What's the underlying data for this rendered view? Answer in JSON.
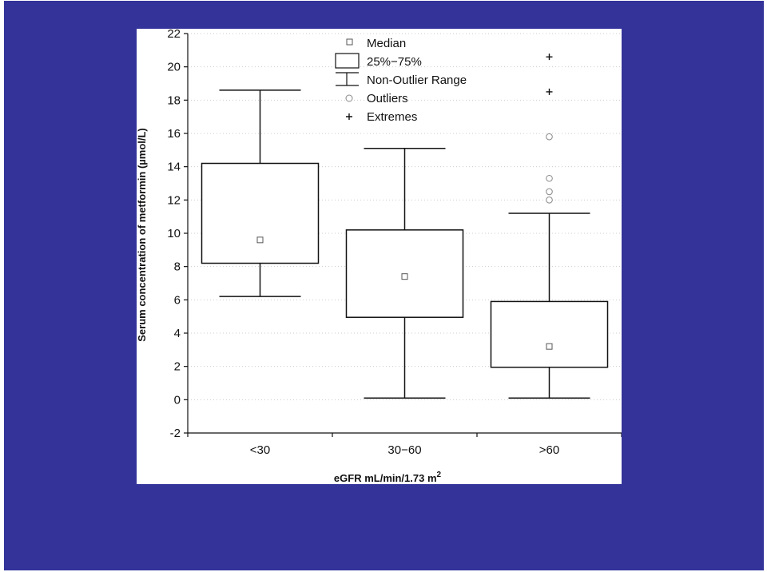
{
  "chart_data": {
    "type": "box",
    "categories": [
      "<30",
      "30−60",
      ">60"
    ],
    "boxes": [
      {
        "category": "<30",
        "whisker_low": 6.2,
        "q1": 8.2,
        "median": 9.6,
        "q3": 14.2,
        "whisker_high": 18.6,
        "outliers": [],
        "extremes": []
      },
      {
        "category": "30−60",
        "whisker_low": 0.1,
        "q1": 4.95,
        "median": 7.4,
        "q3": 10.2,
        "whisker_high": 15.1,
        "outliers": [],
        "extremes": []
      },
      {
        "category": ">60",
        "whisker_low": 0.1,
        "q1": 1.95,
        "median": 3.2,
        "q3": 5.9,
        "whisker_high": 11.2,
        "outliers": [
          12.0,
          12.5,
          13.3,
          15.8
        ],
        "extremes": [
          18.5,
          20.6
        ]
      }
    ],
    "ylim": [
      -2,
      22
    ],
    "yticks": [
      "22",
      "20",
      "18",
      "16",
      "14",
      "12",
      "10",
      "8",
      "6",
      "4",
      "2",
      "0",
      "-2"
    ],
    "ylabel": "Serum concentration of metformin (µmol/L)",
    "xlabel": "eGFR mL/min/1.73 m",
    "xlabel_sup": "2",
    "grid": "horizontal dotted",
    "legend_position": "top-center",
    "legend": {
      "median": "Median",
      "box": "25%−75%",
      "range": "Non-Outlier Range",
      "outliers": "Outliers",
      "extremes": "Extremes"
    }
  },
  "colors": {
    "background": "#33339a",
    "panel": "#ffffff",
    "ink": "#111111",
    "grid": "#cccccc",
    "outlier": "#888888"
  }
}
